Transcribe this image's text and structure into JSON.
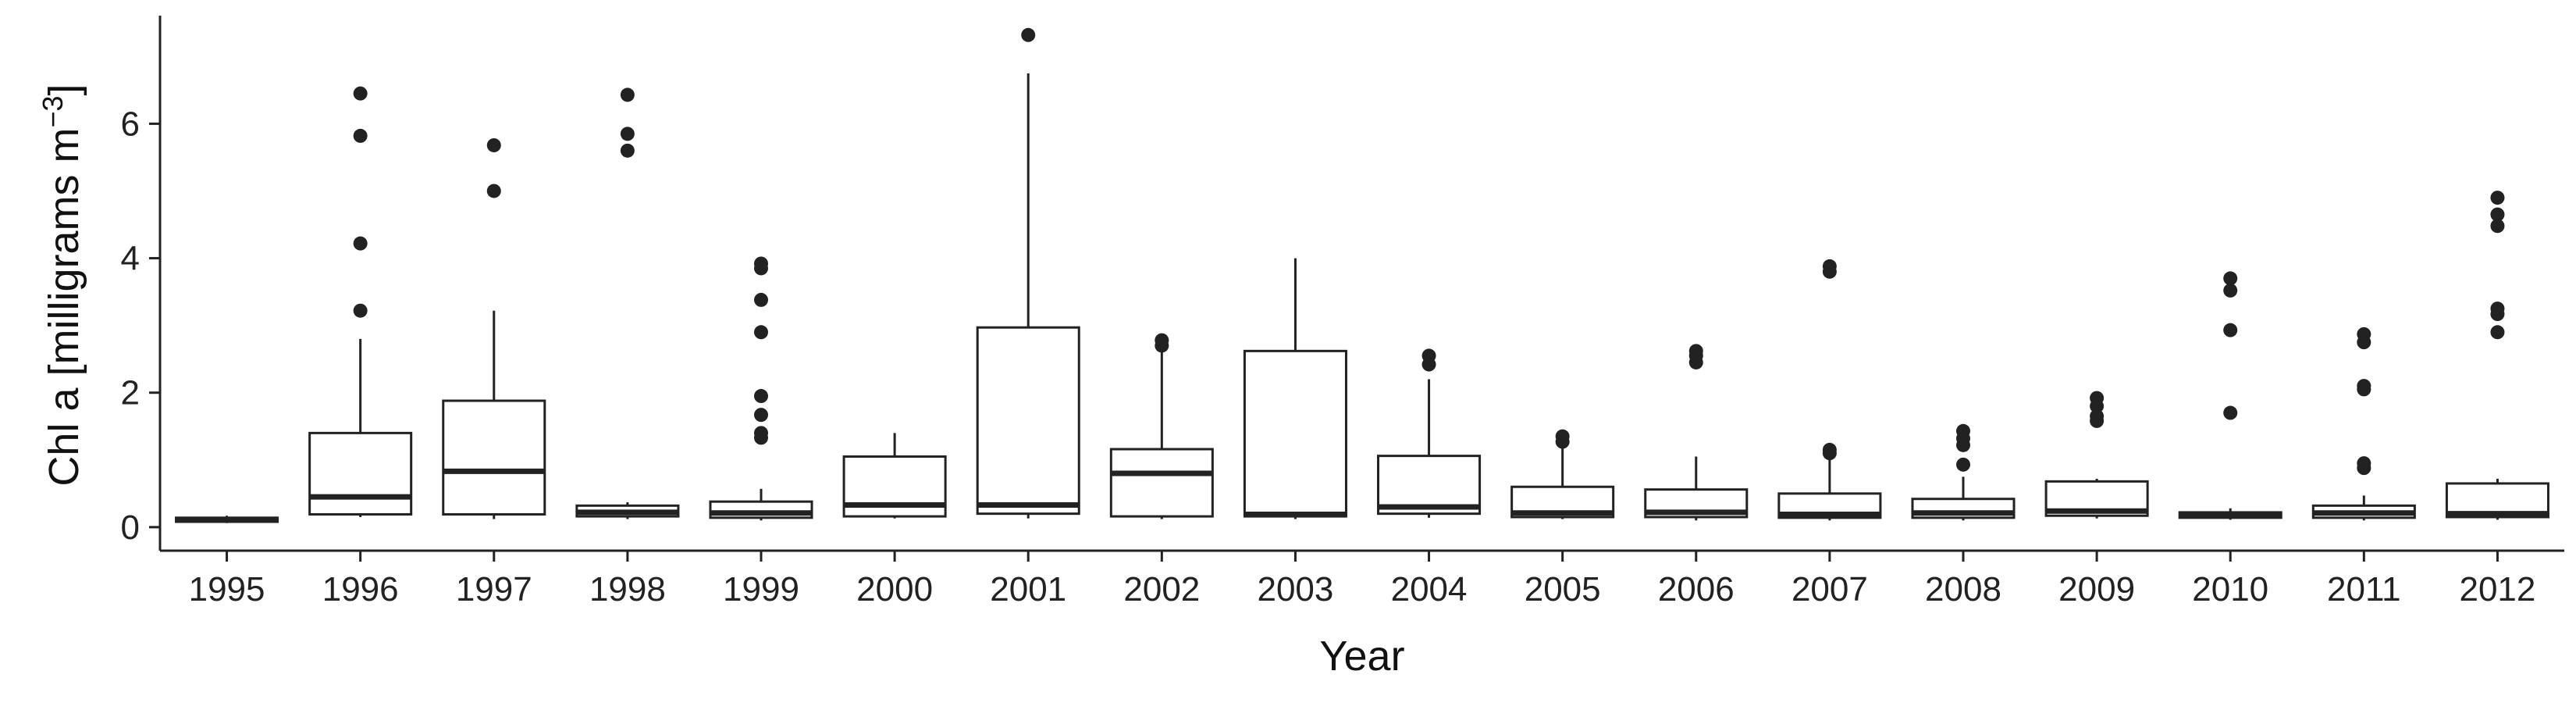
{
  "chart_data": {
    "type": "boxplot",
    "xlabel": "Year",
    "ylabel_main": "Chl a [milligrams  m",
    "ylabel_sup": "−3",
    "ylabel_end": "]",
    "ylim": [
      -0.35,
      7.55
    ],
    "y_ticks": [
      0,
      2,
      4,
      6
    ],
    "y_tick_labels": [
      "0",
      "2",
      "4",
      "6"
    ],
    "grid": false,
    "legend": "none",
    "colors": {
      "box_fill": "#ffffff",
      "stroke": "#222222",
      "outlier": "#222222"
    },
    "categories": [
      "1995",
      "1996",
      "1997",
      "1998",
      "1999",
      "2000",
      "2001",
      "2002",
      "2003",
      "2004",
      "2005",
      "2006",
      "2007",
      "2008",
      "2009",
      "2010",
      "2011",
      "2012"
    ],
    "boxes": [
      {
        "q1": 0.08,
        "median": 0.11,
        "q3": 0.14,
        "whisker_low": 0.06,
        "whisker_high": 0.17,
        "outliers": []
      },
      {
        "q1": 0.19,
        "median": 0.45,
        "q3": 1.4,
        "whisker_low": 0.15,
        "whisker_high": 2.8,
        "outliers": [
          3.22,
          4.22,
          5.82,
          6.45
        ]
      },
      {
        "q1": 0.19,
        "median": 0.83,
        "q3": 1.88,
        "whisker_low": 0.12,
        "whisker_high": 3.22,
        "outliers": [
          5.0,
          5.68
        ]
      },
      {
        "q1": 0.16,
        "median": 0.22,
        "q3": 0.32,
        "whisker_low": 0.12,
        "whisker_high": 0.37,
        "outliers": [
          5.6,
          5.85,
          6.43
        ]
      },
      {
        "q1": 0.14,
        "median": 0.21,
        "q3": 0.38,
        "whisker_low": 0.1,
        "whisker_high": 0.57,
        "outliers": [
          1.33,
          1.4,
          1.67,
          1.95,
          2.9,
          3.38,
          3.85,
          3.92
        ]
      },
      {
        "q1": 0.16,
        "median": 0.33,
        "q3": 1.05,
        "whisker_low": 0.13,
        "whisker_high": 1.4,
        "outliers": []
      },
      {
        "q1": 0.2,
        "median": 0.33,
        "q3": 2.97,
        "whisker_low": 0.13,
        "whisker_high": 6.75,
        "outliers": [
          7.32
        ]
      },
      {
        "q1": 0.16,
        "median": 0.8,
        "q3": 1.16,
        "whisker_low": 0.12,
        "whisker_high": 2.62,
        "outliers": [
          2.7,
          2.78
        ]
      },
      {
        "q1": 0.16,
        "median": 0.19,
        "q3": 2.62,
        "whisker_low": 0.12,
        "whisker_high": 4.0,
        "outliers": []
      },
      {
        "q1": 0.2,
        "median": 0.3,
        "q3": 1.06,
        "whisker_low": 0.14,
        "whisker_high": 2.2,
        "outliers": [
          2.42,
          2.55
        ]
      },
      {
        "q1": 0.15,
        "median": 0.21,
        "q3": 0.6,
        "whisker_low": 0.12,
        "whisker_high": 1.18,
        "outliers": [
          1.27,
          1.35
        ]
      },
      {
        "q1": 0.15,
        "median": 0.22,
        "q3": 0.56,
        "whisker_low": 0.1,
        "whisker_high": 1.05,
        "outliers": [
          2.45,
          2.55,
          2.62
        ]
      },
      {
        "q1": 0.14,
        "median": 0.19,
        "q3": 0.5,
        "whisker_low": 0.1,
        "whisker_high": 1.05,
        "outliers": [
          1.1,
          1.15,
          3.8,
          3.88
        ]
      },
      {
        "q1": 0.14,
        "median": 0.21,
        "q3": 0.42,
        "whisker_low": 0.1,
        "whisker_high": 0.75,
        "outliers": [
          0.93,
          1.22,
          1.32,
          1.43
        ]
      },
      {
        "q1": 0.17,
        "median": 0.24,
        "q3": 0.68,
        "whisker_low": 0.13,
        "whisker_high": 0.72,
        "outliers": [
          1.58,
          1.65,
          1.8,
          1.92
        ]
      },
      {
        "q1": 0.14,
        "median": 0.18,
        "q3": 0.22,
        "whisker_low": 0.11,
        "whisker_high": 0.28,
        "outliers": [
          1.7,
          2.93,
          3.52,
          3.7
        ]
      },
      {
        "q1": 0.14,
        "median": 0.21,
        "q3": 0.32,
        "whisker_low": 0.1,
        "whisker_high": 0.47,
        "outliers": [
          0.88,
          0.95,
          2.05,
          2.1,
          2.75,
          2.87
        ]
      },
      {
        "q1": 0.15,
        "median": 0.2,
        "q3": 0.65,
        "whisker_low": 0.11,
        "whisker_high": 0.72,
        "outliers": [
          2.9,
          3.17,
          3.25,
          4.48,
          4.65,
          4.9
        ]
      }
    ]
  }
}
